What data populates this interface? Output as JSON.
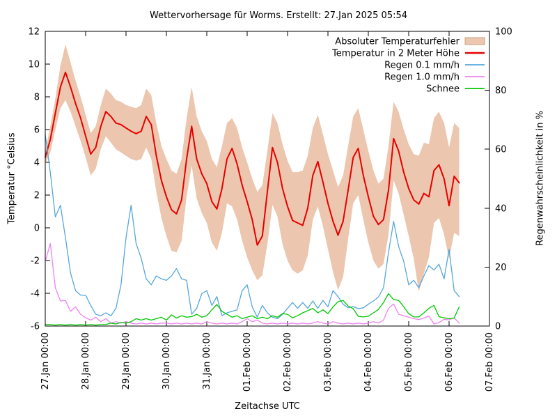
{
  "chart_data": {
    "type": "line",
    "title": "Wettervorhersage für Worms. Erstellt: 27.Jan 2025 05:54",
    "x_axis": {
      "label": "Zeitachse UTC",
      "tick_labels": [
        "27.Jan 00:00",
        "28.Jan 00:00",
        "29.Jan 00:00",
        "30.Jan 00:00",
        "31.Jan 00:00",
        "01.Feb 00:00",
        "02.Feb 00:00",
        "03.Feb 00:00",
        "04.Feb 00:00",
        "05.Feb 00:00",
        "06.Feb 00:00",
        "07.Feb 00:00"
      ],
      "range_hours": [
        0,
        264
      ],
      "tick_step_hours": 24
    },
    "y_axis_left": {
      "label": "Temperatur °Celsius",
      "range": [
        -6,
        12
      ],
      "ticks": [
        -6,
        -4,
        -2,
        0,
        2,
        4,
        6,
        8,
        10,
        12
      ]
    },
    "y_axis_right": {
      "label": "Regenwahrscheinlichkeit in %",
      "range": [
        0,
        100
      ],
      "ticks": [
        0,
        20,
        40,
        60,
        80,
        100
      ]
    },
    "grid": false,
    "legend_position": "top-right-inside",
    "hours": [
      0,
      3,
      6,
      9,
      12,
      15,
      18,
      21,
      24,
      27,
      30,
      33,
      36,
      39,
      42,
      45,
      48,
      51,
      54,
      57,
      60,
      63,
      66,
      69,
      72,
      75,
      78,
      81,
      84,
      87,
      90,
      93,
      96,
      99,
      102,
      105,
      108,
      111,
      114,
      117,
      120,
      123,
      126,
      129,
      132,
      135,
      138,
      141,
      144,
      147,
      150,
      153,
      156,
      159,
      162,
      165,
      168,
      171,
      174,
      177,
      180,
      183,
      186,
      189,
      192,
      195,
      198,
      201,
      204,
      207,
      210,
      213,
      216,
      219,
      222,
      225,
      228,
      231,
      234,
      237,
      240,
      243,
      246
    ],
    "series": [
      {
        "name": "Absoluter Temperaturfehler",
        "type": "band",
        "axis": "left",
        "color": "#ecc6ae",
        "border_color": "#c9a083",
        "high": [
          4.7,
          6.2,
          7.9,
          9.9,
          11.2,
          10.1,
          9.0,
          8.0,
          6.9,
          5.8,
          6.2,
          7.5,
          8.5,
          8.2,
          7.8,
          7.7,
          7.5,
          7.4,
          7.3,
          7.5,
          8.5,
          8.1,
          6.4,
          5.0,
          4.2,
          3.5,
          3.3,
          4.2,
          6.7,
          8.6,
          6.8,
          5.9,
          5.3,
          4.2,
          3.7,
          5.0,
          6.4,
          6.7,
          6.1,
          4.9,
          4.0,
          3.0,
          2.2,
          2.6,
          4.7,
          7.0,
          6.4,
          5.1,
          4.1,
          3.4,
          3.4,
          3.5,
          4.4,
          6.1,
          6.9,
          5.7,
          4.5,
          3.5,
          2.5,
          3.2,
          5.0,
          6.8,
          7.3,
          6.0,
          4.7,
          3.5,
          2.7,
          3.0,
          5.0,
          7.7,
          7.1,
          6.0,
          5.1,
          4.5,
          4.4,
          5.2,
          5.1,
          6.7,
          7.1,
          6.4,
          4.9,
          6.4,
          6.1
        ],
        "low": [
          3.9,
          4.6,
          6.0,
          7.3,
          7.8,
          7.1,
          6.2,
          5.3,
          4.3,
          3.2,
          3.6,
          4.8,
          5.6,
          5.2,
          4.8,
          4.6,
          4.4,
          4.2,
          4.1,
          4.2,
          4.9,
          4.2,
          2.2,
          0.6,
          -0.5,
          -1.4,
          -1.5,
          -0.8,
          1.9,
          3.8,
          1.8,
          0.9,
          0.3,
          -0.9,
          -1.4,
          -0.3,
          1.5,
          1.3,
          0.5,
          -0.8,
          -1.8,
          -2.6,
          -3.2,
          -2.9,
          -1.0,
          1.4,
          0.7,
          -1.0,
          -2.0,
          -2.6,
          -2.8,
          -2.6,
          -1.7,
          0.5,
          1.3,
          0.1,
          -1.3,
          -2.7,
          -3.8,
          -3.0,
          -0.7,
          1.5,
          2.0,
          0.5,
          -0.9,
          -2.0,
          -2.5,
          -2.2,
          -0.4,
          2.9,
          2.1,
          0.8,
          -0.5,
          -1.9,
          -3.9,
          -2.8,
          -1.8,
          0.3,
          0.6,
          -0.4,
          -1.9,
          -0.3,
          -0.5
        ]
      },
      {
        "name": "Temperatur in 2 Meter Höhe",
        "type": "line",
        "axis": "left",
        "color": "#e60000",
        "width": 2,
        "values": [
          4.3,
          5.4,
          7.0,
          8.6,
          9.5,
          8.6,
          7.6,
          6.7,
          5.6,
          4.5,
          4.9,
          6.2,
          7.1,
          6.8,
          6.4,
          6.3,
          6.1,
          5.9,
          5.75,
          5.9,
          6.8,
          6.3,
          4.4,
          2.9,
          1.9,
          1.1,
          0.85,
          1.7,
          4.2,
          6.2,
          4.2,
          3.3,
          2.7,
          1.6,
          1.15,
          2.4,
          4.2,
          4.85,
          3.9,
          2.6,
          1.6,
          0.5,
          -1.05,
          -0.5,
          2.2,
          4.9,
          4.0,
          2.4,
          1.3,
          0.45,
          0.3,
          0.15,
          1.2,
          3.2,
          4.05,
          2.8,
          1.5,
          0.4,
          -0.45,
          0.4,
          2.3,
          4.3,
          4.85,
          3.2,
          1.9,
          0.7,
          0.2,
          0.5,
          2.3,
          5.45,
          4.7,
          3.4,
          2.4,
          1.7,
          1.45,
          2.1,
          1.9,
          3.5,
          3.85,
          3.0,
          1.35,
          3.15,
          2.75
        ]
      },
      {
        "name": "Regen 0.1 mm/h",
        "type": "line",
        "axis": "right",
        "color": "#55a7db",
        "width": 1.3,
        "values": [
          65,
          52,
          37,
          41,
          30,
          18,
          12,
          10.5,
          10.4,
          7,
          4,
          3.5,
          4.5,
          3.5,
          6,
          14,
          30,
          41,
          28,
          23,
          16,
          14,
          17,
          16,
          15.5,
          17,
          19.5,
          16,
          15.5,
          4,
          6,
          11,
          12,
          7,
          10,
          3.5,
          4.5,
          5,
          5.5,
          12,
          14,
          6.5,
          3,
          7,
          4.5,
          3,
          2.5,
          4,
          6,
          8,
          6,
          8,
          6,
          8.5,
          6,
          8.7,
          6.5,
          12,
          10,
          7.4,
          6.2,
          6.6,
          5.9,
          6.2,
          7.4,
          8.5,
          9.8,
          13,
          25,
          35.5,
          27,
          22,
          14,
          15.5,
          13,
          17,
          20.5,
          19,
          21,
          16,
          26,
          12,
          10
        ]
      },
      {
        "name": "Regen 1.0 mm/h",
        "type": "line",
        "axis": "right",
        "color": "#ee82ee",
        "width": 1.3,
        "values": [
          22,
          28,
          13,
          8.5,
          8.7,
          5,
          6.5,
          4,
          2.8,
          2,
          3,
          1.5,
          2.5,
          1,
          1.5,
          1,
          1.5,
          1,
          0.7,
          1,
          0.7,
          1,
          0.7,
          1,
          1,
          0.7,
          1,
          0.7,
          1,
          0.7,
          1,
          0.7,
          1.5,
          1,
          0.7,
          1,
          0.7,
          1,
          0.7,
          1.5,
          2.5,
          1.5,
          2,
          1,
          0.7,
          1,
          0.7,
          1,
          0.7,
          1,
          0.7,
          1,
          0.7,
          1,
          1.5,
          1,
          0.7,
          1.5,
          1,
          0.7,
          1,
          0.7,
          1,
          0.7,
          1,
          1.5,
          1,
          2,
          6,
          7.5,
          4,
          3.5,
          3,
          2.5,
          2.2,
          2.7,
          3.4,
          0.7,
          1.2,
          2.3,
          2.1,
          2.8,
          1.0
        ]
      },
      {
        "name": "Schnee",
        "type": "line",
        "axis": "right",
        "color": "#00c800",
        "width": 1.3,
        "values": [
          0.5,
          0.5,
          0.3,
          0.5,
          0.3,
          0.5,
          0.3,
          0.5,
          0.3,
          0.5,
          0.3,
          0.5,
          0.5,
          1,
          0.7,
          1.2,
          1,
          1.5,
          2.5,
          2,
          2.5,
          2,
          2.5,
          3,
          2,
          3.8,
          2.7,
          3.5,
          3,
          3.2,
          4,
          3,
          3.5,
          5.5,
          7.3,
          5,
          4,
          3,
          3.5,
          2.5,
          3,
          3.5,
          2.5,
          3,
          2.5,
          3.5,
          3,
          4.2,
          4,
          2.8,
          3.5,
          4.5,
          5.2,
          6,
          4.5,
          5.5,
          4.2,
          6.5,
          8.3,
          8.7,
          6.8,
          5.9,
          3.3,
          3.1,
          3.3,
          4.5,
          5.6,
          8,
          11,
          9,
          8.7,
          6.6,
          4.2,
          3.1,
          3.1,
          4.5,
          6,
          7,
          3.2,
          2.8,
          2.5,
          2.7,
          6.5
        ]
      }
    ]
  }
}
